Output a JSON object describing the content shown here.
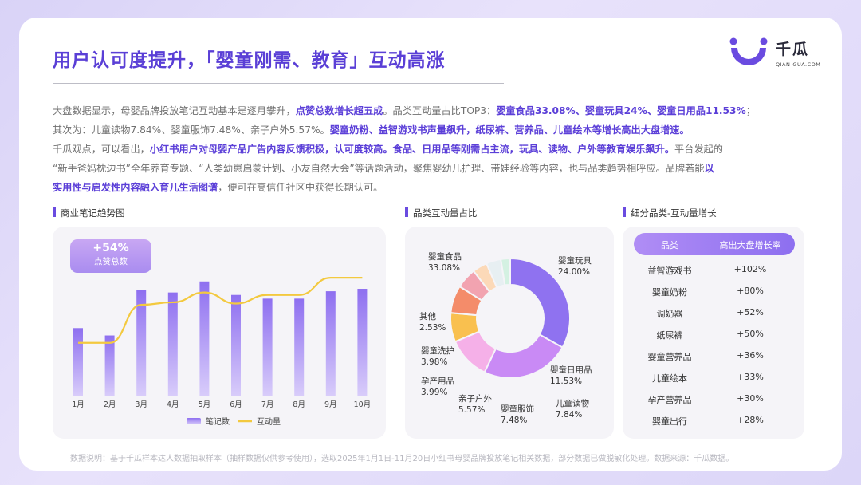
{
  "title": "用户认可度提升，「婴童刚需、教育」互动高涨",
  "logo": {
    "name": "千瓜",
    "sub": "QIAN-GUA.COM"
  },
  "paragraph": {
    "l1a": "大盘数据显示，母婴品牌投放笔记互动基本是逐月攀升，",
    "l1b": "点赞总数增长超五成",
    "l1c": "。品类互动量占比TOP3：",
    "l1d": "婴童食品33.08%、婴童玩具24%、婴童日用品11.53%",
    "l1e": "；",
    "l2a": "其次为：儿童读物7.84%、婴童服饰7.48%、亲子户外5.57%。",
    "l2b": "婴童奶粉、益智游戏书声量飙升，纸尿裤、营养品、儿童绘本等增长高出大盘增速。",
    "l3a": "千瓜观点，可以看出，",
    "l3b": "小红书用户对母婴产品广告内容反馈积极，认可度较高。食品、日用品等刚需占主流，玩具、读物、户外等教育娱乐飙升。",
    "l3c": "平台发起的",
    "l4a": "“新手爸妈枕边书”全年养育专题、“人类幼崽启蒙计划、小友自然大会”等话题活动，聚焦婴幼儿护理、带娃经验等内容，也与品类趋势相呼应。品牌若能",
    "l4b": "以",
    "l5a": "实用性与启发性内容融入育儿生活图谱",
    "l5b": "，便可在高信任社区中获得长期认可。"
  },
  "sections": {
    "trend": "商业笔记趋势图",
    "share": "品类互动量占比",
    "growth": "细分品类-互动量增长"
  },
  "bubble": {
    "value": "+54%",
    "label": "点赞总数"
  },
  "legend": {
    "notes": "笔记数",
    "interaction": "互动量"
  },
  "table": {
    "headers": [
      "品类",
      "高出大盘增长率"
    ],
    "rows": [
      [
        "益智游戏书",
        "+102%"
      ],
      [
        "婴童奶粉",
        "+80%"
      ],
      [
        "调奶器",
        "+52%"
      ],
      [
        "纸尿裤",
        "+50%"
      ],
      [
        "婴童营养品",
        "+36%"
      ],
      [
        "儿童绘本",
        "+33%"
      ],
      [
        "孕产营养品",
        "+30%"
      ],
      [
        "婴童出行",
        "+28%"
      ]
    ]
  },
  "footer": "数据说明：基于千瓜样本达人数据抽取样本（抽样数据仅供参考使用），选取2025年1月1日-11月20日小红书母婴品牌投放笔记相关数据，部分数据已做脱敏化处理。数据来源：千瓜数据。",
  "colors": {
    "accent": "#5b3fd8",
    "bar_top": "#8e6ff0",
    "bar_bottom": "#d8ccfa",
    "line": "#f3c93f"
  },
  "chart_data": [
    {
      "type": "bar",
      "title": "商业笔记趋势图",
      "categories": [
        "1月",
        "2月",
        "3月",
        "4月",
        "5月",
        "6月",
        "7月",
        "8月",
        "9月",
        "10月"
      ],
      "series": [
        {
          "name": "笔记数",
          "type": "bar",
          "values": [
            0.55,
            0.49,
            0.86,
            0.84,
            0.93,
            0.82,
            0.79,
            0.79,
            0.85,
            0.87
          ]
        },
        {
          "name": "互动量",
          "type": "line",
          "values": [
            0.43,
            0.43,
            0.74,
            0.76,
            0.84,
            0.75,
            0.82,
            0.82,
            0.96,
            0.96
          ]
        }
      ],
      "ylim": [
        0,
        1
      ],
      "grid": false,
      "legend": "bottom"
    },
    {
      "type": "pie",
      "title": "品类互动量占比",
      "donut": true,
      "slices": [
        {
          "label": "婴童食品",
          "value": 33.08,
          "display": "33.08%",
          "color": "#8f72f0"
        },
        {
          "label": "婴童玩具",
          "value": 24.0,
          "display": "24.00%",
          "color": "#c98af5"
        },
        {
          "label": "婴童日用品",
          "value": 11.53,
          "display": "11.53%",
          "color": "#f5b0e8"
        },
        {
          "label": "儿童读物",
          "value": 7.84,
          "display": "7.84%",
          "color": "#f9c04f"
        },
        {
          "label": "婴童服饰",
          "value": 7.48,
          "display": "7.48%",
          "color": "#f48c6a"
        },
        {
          "label": "亲子户外",
          "value": 5.57,
          "display": "5.57%",
          "color": "#f2a3b0"
        },
        {
          "label": "孕产用品",
          "value": 3.99,
          "display": "3.99%",
          "color": "#fcd9b8"
        },
        {
          "label": "婴童洗护",
          "value": 3.98,
          "display": "3.98%",
          "color": "#e7eff2"
        },
        {
          "label": "其他",
          "value": 2.53,
          "display": "2.53%",
          "color": "#d4f1e2"
        }
      ]
    }
  ]
}
